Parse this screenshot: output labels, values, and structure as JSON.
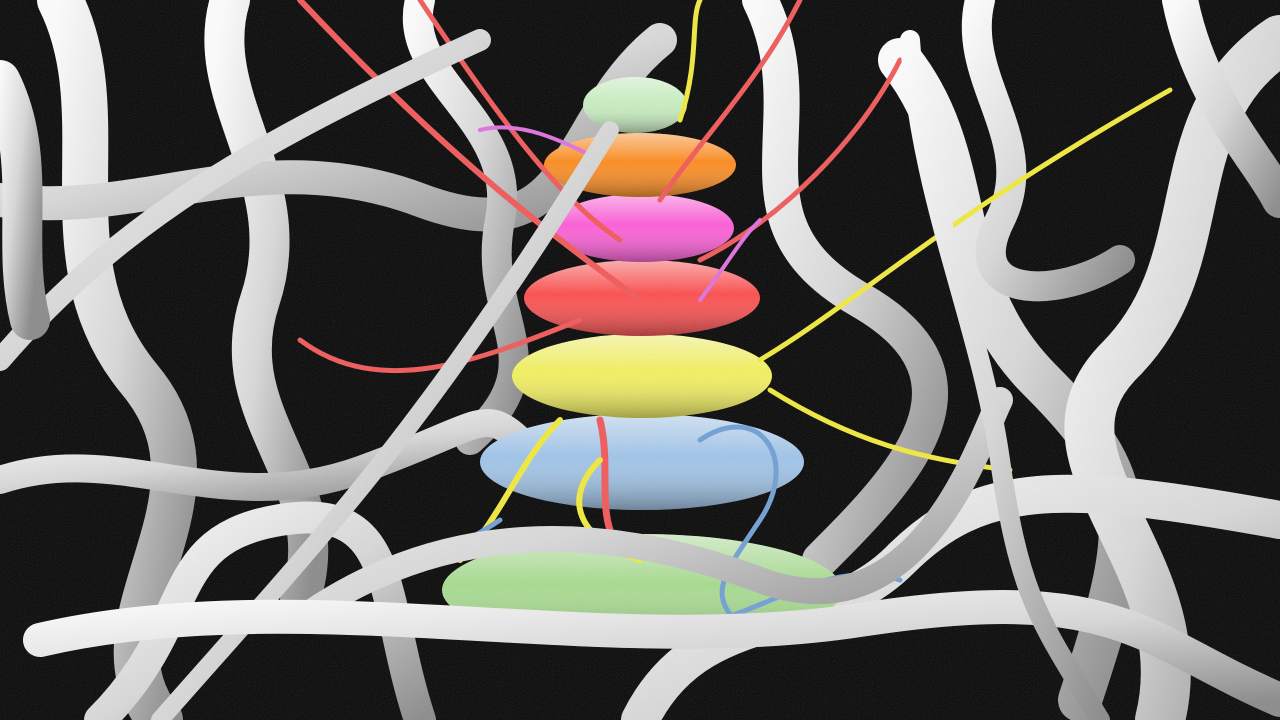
{
  "scene": {
    "background": "#050505",
    "ring_stack": [
      {
        "name": "mint-ring",
        "color": "#c8f0c0"
      },
      {
        "name": "orange-ring",
        "color": "#ff8a1a"
      },
      {
        "name": "pink-ring",
        "color": "#ff5ad8"
      },
      {
        "name": "red-ring",
        "color": "#ff4a4a"
      },
      {
        "name": "yellow-ring",
        "color": "#f4f25a"
      },
      {
        "name": "blue-ring",
        "color": "#9ec4ea"
      },
      {
        "name": "green-ring",
        "color": "#a6dc8e"
      }
    ],
    "tendril_colors": {
      "red": "#f25757",
      "yellow": "#f2ea3c",
      "blue": "#6f9fd6",
      "pink": "#e070e0"
    },
    "white_tube_color": "#e6e6e6"
  }
}
